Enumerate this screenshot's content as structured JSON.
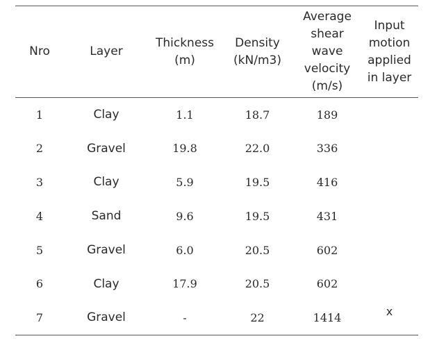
{
  "table": {
    "headers": {
      "nro": "Nro",
      "layer": "Layer",
      "thickness": "Thickness\n(m)",
      "density": "Density\n(kN/m3)",
      "velocity": "Average\nshear\nwave\nvelocity\n(m/s)",
      "input": "Input\nmotion\napplied\nin layer"
    },
    "rows": [
      {
        "nro": "1",
        "layer": "Clay",
        "thickness": "1.1",
        "density": "18.7",
        "velocity": "189",
        "input": ""
      },
      {
        "nro": "2",
        "layer": "Gravel",
        "thickness": "19.8",
        "density": "22.0",
        "velocity": "336",
        "input": ""
      },
      {
        "nro": "3",
        "layer": "Clay",
        "thickness": "5.9",
        "density": "19.5",
        "velocity": "416",
        "input": ""
      },
      {
        "nro": "4",
        "layer": "Sand",
        "thickness": "9.6",
        "density": "19.5",
        "velocity": "431",
        "input": ""
      },
      {
        "nro": "5",
        "layer": "Gravel",
        "thickness": "6.0",
        "density": "20.5",
        "velocity": "602",
        "input": ""
      },
      {
        "nro": "6",
        "layer": "Clay",
        "thickness": "17.9",
        "density": "20.5",
        "velocity": "602",
        "input": ""
      },
      {
        "nro": "7",
        "layer": "Gravel",
        "thickness": "-",
        "density": "22",
        "velocity": "1414",
        "input": "x"
      }
    ]
  }
}
